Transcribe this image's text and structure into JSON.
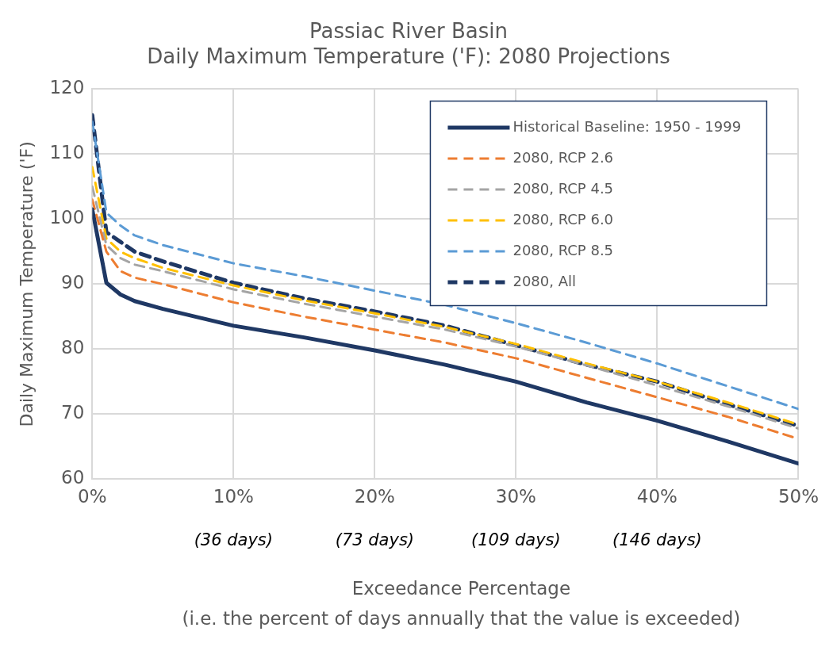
{
  "chart_data": {
    "type": "line",
    "title": "Passiac River Basin",
    "subtitle": "Daily Maximum Temperature ('F): 2080 Projections",
    "xlabel": "Exceedance Percentage",
    "ylabel": "Daily Maximum Temperature ('F)",
    "x": [
      0,
      1,
      2,
      3,
      5,
      10,
      15,
      20,
      25,
      30,
      35,
      40,
      45,
      50
    ],
    "series": [
      {
        "name": "Historical Baseline: 1950 - 1999",
        "color": "#1f3864",
        "line_style": "solid",
        "values": [
          101.5,
          90.2,
          88.4,
          87.4,
          86.2,
          83.6,
          81.8,
          79.8,
          77.6,
          75.0,
          71.8,
          69.0,
          65.8,
          62.4
        ]
      },
      {
        "name": "2080, RCP 2.6",
        "color": "#ed7d31",
        "line_style": "dashed",
        "values": [
          103,
          95,
          92,
          91,
          90,
          87.2,
          85,
          83,
          81,
          78.6,
          75.6,
          72.6,
          69.6,
          66.2
        ]
      },
      {
        "name": "2080, RCP 4.5",
        "color": "#a5a5a5",
        "line_style": "dashed",
        "values": [
          105,
          96,
          94,
          93,
          92,
          89.2,
          87,
          85,
          83,
          80.4,
          77.5,
          74.4,
          71.2,
          67.8
        ]
      },
      {
        "name": "2080, RCP 6.0",
        "color": "#ffc000",
        "line_style": "dashed",
        "values": [
          108,
          97,
          95,
          94,
          92.5,
          89.8,
          87.5,
          85.5,
          83.4,
          80.8,
          77.8,
          75,
          71.8,
          68.4
        ]
      },
      {
        "name": "2080, RCP 8.5",
        "color": "#5b9bd5",
        "line_style": "dashed",
        "values": [
          115,
          101,
          99,
          97.5,
          96,
          93.2,
          91.2,
          89,
          86.8,
          84,
          81,
          77.8,
          74.3,
          70.8
        ]
      },
      {
        "name": "2080, All",
        "color": "#1f3864",
        "line_style": "dashed",
        "values": [
          116,
          98,
          96.5,
          95,
          93.5,
          90.2,
          87.8,
          85.8,
          83.6,
          80.6,
          77.6,
          75,
          71.5,
          68.2
        ]
      }
    ],
    "xlim": [
      0,
      50
    ],
    "xticks": [
      {
        "value": 0,
        "label": "0%"
      },
      {
        "value": 10,
        "label": "10%"
      },
      {
        "value": 20,
        "label": "20%"
      },
      {
        "value": 30,
        "label": "30%"
      },
      {
        "value": 40,
        "label": "40%"
      },
      {
        "value": 50,
        "label": "50%"
      }
    ],
    "ylim": [
      60,
      120
    ],
    "yticks": [
      60,
      70,
      80,
      90,
      100,
      110,
      120
    ],
    "grid": true,
    "legend": "top right",
    "marker": "none",
    "annotations": [
      "(36 days)",
      "(73 days)",
      "(109 days)",
      "(146 days)",
      "(i.e. the percent of days annually that the value is exceeded)"
    ]
  }
}
